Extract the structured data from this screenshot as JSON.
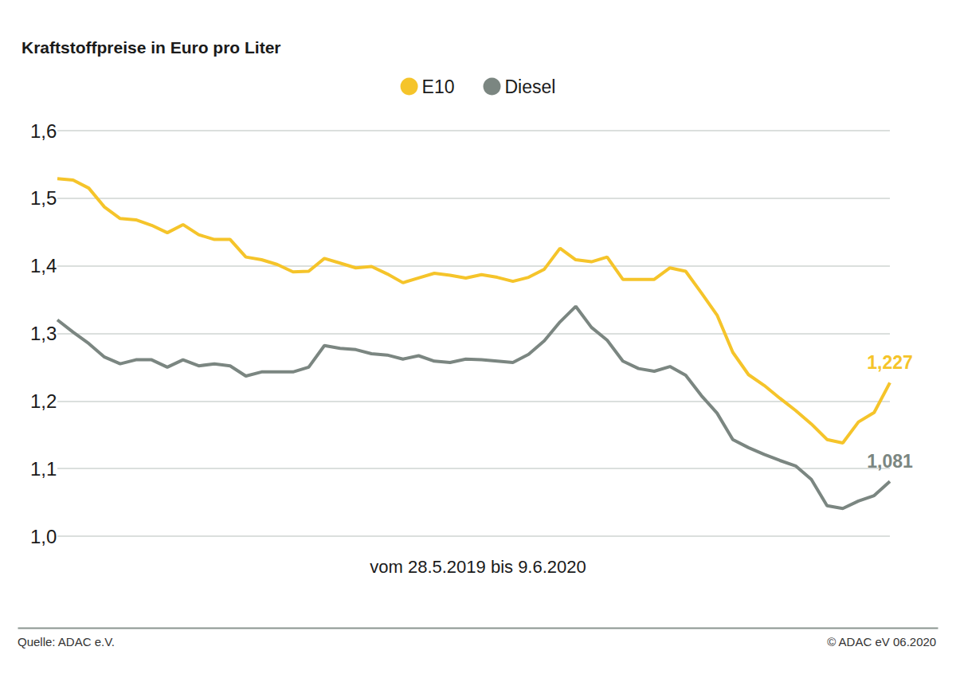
{
  "chart_data": {
    "type": "line",
    "title": "Kraftstoffpreise in Euro pro Liter",
    "subtitle": "vom 28.5.2019 bis 9.6.2020",
    "annotations": [
      "Quelle: ADAC e.V.",
      "© ADAC eV 06.2020"
    ],
    "categories": [
      null,
      null,
      null,
      null,
      null,
      null,
      null,
      null,
      null,
      null,
      null,
      null,
      null,
      null,
      null,
      null,
      null,
      null,
      null,
      null,
      null,
      null,
      null,
      null,
      null,
      null,
      null,
      null,
      null,
      null,
      null,
      null,
      null,
      null,
      null,
      null,
      null,
      null,
      null,
      null,
      null,
      null,
      null,
      null,
      null,
      null,
      null,
      null,
      null,
      null,
      null,
      null,
      null,
      null
    ],
    "series": [
      {
        "name": "E10",
        "color": "#f5c42a",
        "values": [
          1.529,
          1.527,
          1.515,
          1.487,
          1.47,
          1.468,
          1.46,
          1.449,
          1.461,
          1.446,
          1.439,
          1.439,
          1.413,
          1.409,
          1.402,
          1.391,
          1.392,
          1.411,
          1.404,
          1.397,
          1.399,
          1.388,
          1.375,
          1.382,
          1.389,
          1.386,
          1.382,
          1.387,
          1.383,
          1.377,
          1.383,
          1.395,
          1.426,
          1.409,
          1.406,
          1.413,
          1.38,
          1.38,
          1.38,
          1.397,
          1.392,
          1.36,
          1.327,
          1.272,
          1.239,
          1.223,
          1.204,
          1.186,
          1.166,
          1.143,
          1.138,
          1.169,
          1.183,
          1.227
        ],
        "value_labels": [
          null,
          null,
          null,
          null,
          null,
          null,
          null,
          null,
          null,
          null,
          null,
          null,
          null,
          null,
          null,
          null,
          null,
          null,
          null,
          null,
          null,
          null,
          null,
          null,
          null,
          null,
          null,
          null,
          null,
          null,
          null,
          null,
          null,
          null,
          null,
          null,
          null,
          null,
          null,
          null,
          null,
          null,
          null,
          null,
          null,
          null,
          null,
          null,
          null,
          null,
          null,
          null,
          null,
          "1,227"
        ]
      },
      {
        "name": "Diesel",
        "color": "#7b8681",
        "values": [
          1.32,
          1.302,
          1.285,
          1.265,
          1.255,
          1.261,
          1.261,
          1.25,
          1.261,
          1.252,
          1.255,
          1.252,
          1.237,
          1.243,
          1.243,
          1.243,
          1.25,
          1.282,
          1.278,
          1.276,
          1.27,
          1.268,
          1.262,
          1.267,
          1.259,
          1.257,
          1.262,
          1.261,
          1.259,
          1.257,
          1.269,
          1.289,
          1.317,
          1.34,
          1.309,
          1.29,
          1.259,
          1.248,
          1.244,
          1.251,
          1.238,
          1.208,
          1.182,
          1.143,
          1.131,
          1.121,
          1.112,
          1.104,
          1.084,
          1.045,
          1.041,
          1.052,
          1.06,
          1.081
        ],
        "value_labels": [
          null,
          null,
          null,
          null,
          null,
          null,
          null,
          null,
          null,
          null,
          null,
          null,
          null,
          null,
          null,
          null,
          null,
          null,
          null,
          null,
          null,
          null,
          null,
          null,
          null,
          null,
          null,
          null,
          null,
          null,
          null,
          null,
          null,
          null,
          null,
          null,
          null,
          null,
          null,
          null,
          null,
          null,
          null,
          null,
          null,
          null,
          null,
          null,
          null,
          null,
          null,
          null,
          null,
          "1,081"
        ]
      }
    ],
    "ylim": [
      1.0,
      1.6
    ],
    "yticks": [
      {
        "value": 1.0,
        "label": "1,0"
      },
      {
        "value": 1.1,
        "label": "1,1"
      },
      {
        "value": 1.2,
        "label": "1,2"
      },
      {
        "value": 1.3,
        "label": "1,3"
      },
      {
        "value": 1.4,
        "label": "1,4"
      },
      {
        "value": 1.5,
        "label": "1,5"
      },
      {
        "value": 1.6,
        "label": "1,6"
      }
    ],
    "grid": true,
    "legend": "top",
    "data_labels": true,
    "tick_labels": "y"
  }
}
